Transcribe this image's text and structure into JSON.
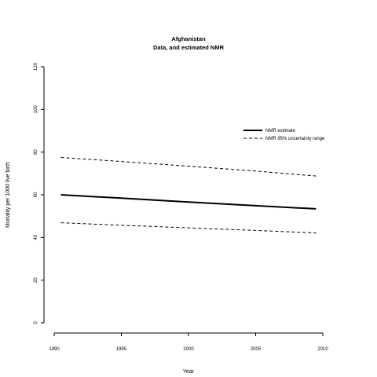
{
  "chart_data": {
    "type": "line",
    "title": "Afghanistan",
    "subtitle": "Data, and estimated NMR",
    "xlabel": "Year",
    "ylabel": "Mortality per 1000 live birth",
    "xlim": [
      1990,
      2010
    ],
    "ylim": [
      0,
      120
    ],
    "x_ticks": [
      1990,
      1995,
      2000,
      2005,
      2010
    ],
    "y_ticks": [
      0,
      20,
      40,
      60,
      80,
      100,
      120
    ],
    "grid": false,
    "legend_position": "top-right",
    "series": [
      {
        "name": "NMR estimate",
        "style": "solid",
        "color": "#000000",
        "x": [
          1990.5,
          1995,
          2000,
          2005,
          2009.5
        ],
        "y": [
          60.0,
          58.4,
          56.6,
          54.9,
          53.4
        ]
      },
      {
        "name": "NMR 95% uncertainty range",
        "legend_group": "NMR 95% uncertainty range",
        "style": "dashed",
        "color": "#000000",
        "x": [
          1990.5,
          1995,
          2000,
          2005,
          2009.5
        ],
        "y": [
          77.5,
          75.6,
          73.4,
          71.1,
          68.8
        ]
      },
      {
        "legend_group": "NMR 95% uncertainty range",
        "style": "dashed",
        "color": "#000000",
        "x": [
          1990.5,
          1995,
          2000,
          2005,
          2009.5
        ],
        "y": [
          46.9,
          45.7,
          44.5,
          43.3,
          42.1
        ]
      }
    ]
  }
}
